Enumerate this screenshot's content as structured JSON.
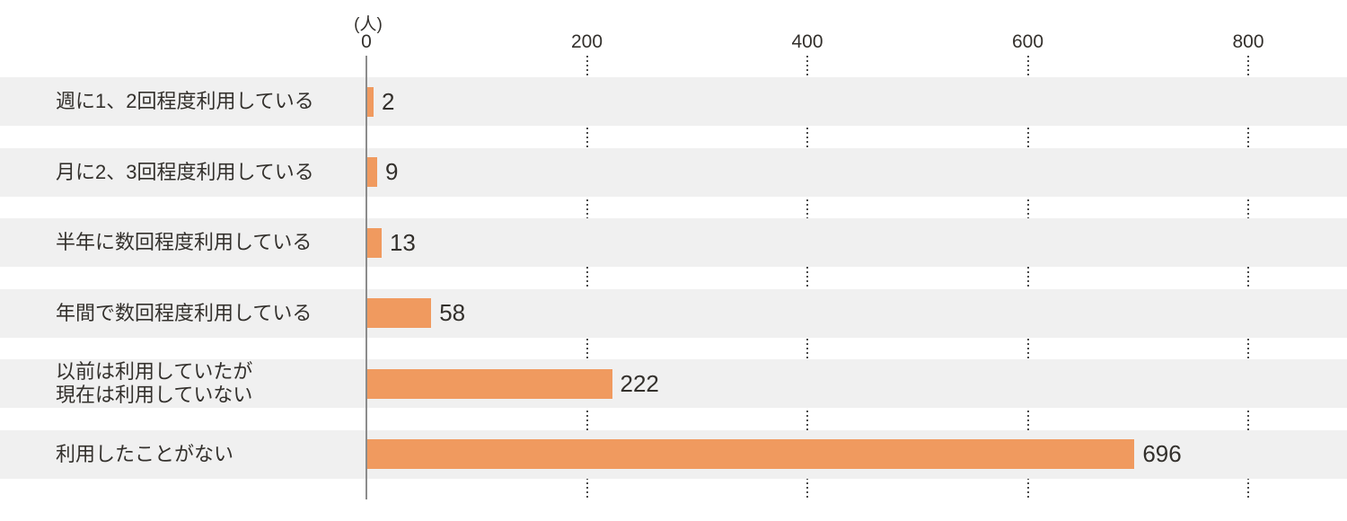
{
  "chart_data": {
    "type": "bar",
    "orientation": "horizontal",
    "title": "",
    "unit_label": "(人)",
    "categories": [
      "週に1、2回程度利用している",
      "月に2、3回程度利用している",
      "半年に数回程度利用している",
      "年間で数回程度利用している",
      "以前は利用していたが\n現在は利用していない",
      "利用したことがない"
    ],
    "values": [
      2,
      9,
      13,
      58,
      222,
      696
    ],
    "value_labels": [
      "2",
      "9",
      "13",
      "58",
      "222",
      "696"
    ],
    "xlim": [
      0,
      800
    ],
    "tick_values": [
      0,
      200,
      400,
      600,
      800
    ],
    "tick_labels": [
      "0",
      "200",
      "400",
      "600",
      "800"
    ],
    "legend": "none",
    "grid": "dotted vertical lines at 200/400/600/800, visible only between row bands",
    "colors": {
      "bar": "#F09A5F",
      "row_band": "#F0F0F0",
      "axis_line": "#8C8C8C",
      "grid_dots": "#4A4A4A",
      "text": "#33302C",
      "background": "#FFFFFF"
    }
  }
}
